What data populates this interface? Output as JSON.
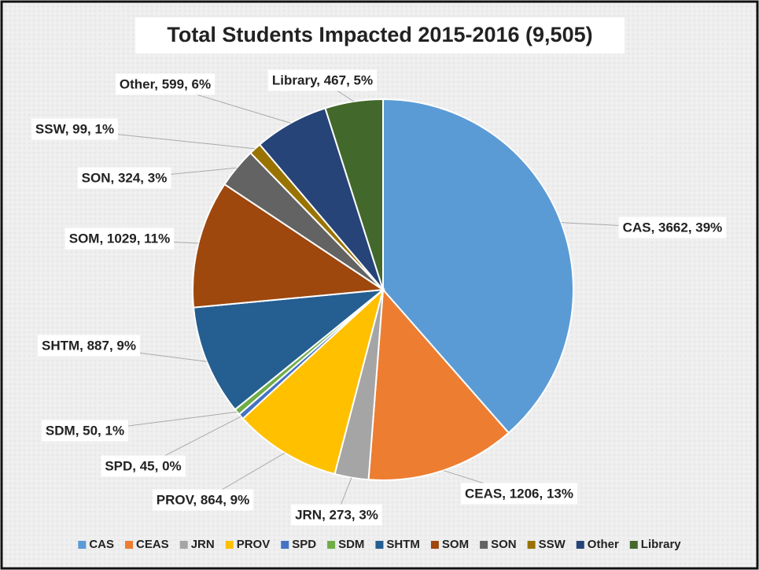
{
  "chart_data": {
    "type": "pie",
    "title": "Total Students Impacted 2015-2016 (9,505)",
    "categories": [
      "CAS",
      "CEAS",
      "JRN",
      "PROV",
      "SPD",
      "SDM",
      "SHTM",
      "SOM",
      "SON",
      "SSW",
      "Other",
      "Library"
    ],
    "values": [
      3662,
      1206,
      273,
      864,
      45,
      50,
      887,
      1029,
      324,
      99,
      599,
      467
    ],
    "value_labels": [
      "CAS, 3662, 39%",
      "CEAS, 1206, 13%",
      "JRN, 273, 3%",
      "PROV, 864, 9%",
      "SPD, 45, 0%",
      "SDM, 50, 1%",
      "SHTM, 887, 9%",
      "SOM, 1029, 11%",
      "SON, 324, 3%",
      "SSW, 99, 1%",
      "Other, 599, 6%",
      "Library, 467, 5%"
    ],
    "colors": [
      "#5b9bd5",
      "#ed7d31",
      "#a5a5a5",
      "#ffc000",
      "#4472c4",
      "#70ad47",
      "#255e91",
      "#9e480e",
      "#636363",
      "#997300",
      "#264478",
      "#43682b"
    ],
    "legend": "bottom"
  }
}
